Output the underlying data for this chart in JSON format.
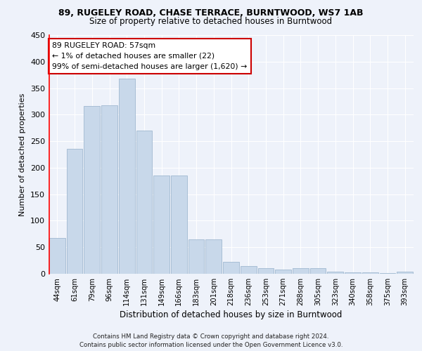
{
  "title1": "89, RUGELEY ROAD, CHASE TERRACE, BURNTWOOD, WS7 1AB",
  "title2": "Size of property relative to detached houses in Burntwood",
  "xlabel": "Distribution of detached houses by size in Burntwood",
  "ylabel": "Number of detached properties",
  "categories": [
    "44sqm",
    "61sqm",
    "79sqm",
    "96sqm",
    "114sqm",
    "131sqm",
    "149sqm",
    "166sqm",
    "183sqm",
    "201sqm",
    "218sqm",
    "236sqm",
    "253sqm",
    "271sqm",
    "288sqm",
    "305sqm",
    "323sqm",
    "340sqm",
    "358sqm",
    "375sqm",
    "393sqm"
  ],
  "values": [
    67,
    236,
    316,
    317,
    368,
    270,
    185,
    185,
    65,
    65,
    22,
    15,
    10,
    8,
    10,
    10,
    4,
    3,
    3,
    1,
    4
  ],
  "bar_color": "#c8d8ea",
  "bar_edge_color": "#a0b8d0",
  "annotation_text_line1": "89 RUGELEY ROAD: 57sqm",
  "annotation_text_line2": "← 1% of detached houses are smaller (22)",
  "annotation_text_line3": "99% of semi-detached houses are larger (1,620) →",
  "annotation_box_color": "#ffffff",
  "annotation_box_edge_color": "#cc0000",
  "footer": "Contains HM Land Registry data © Crown copyright and database right 2024.\nContains public sector information licensed under the Open Government Licence v3.0.",
  "background_color": "#eef2fa",
  "grid_color": "#ffffff",
  "ylim": [
    0,
    450
  ],
  "yticks": [
    0,
    50,
    100,
    150,
    200,
    250,
    300,
    350,
    400,
    450
  ]
}
